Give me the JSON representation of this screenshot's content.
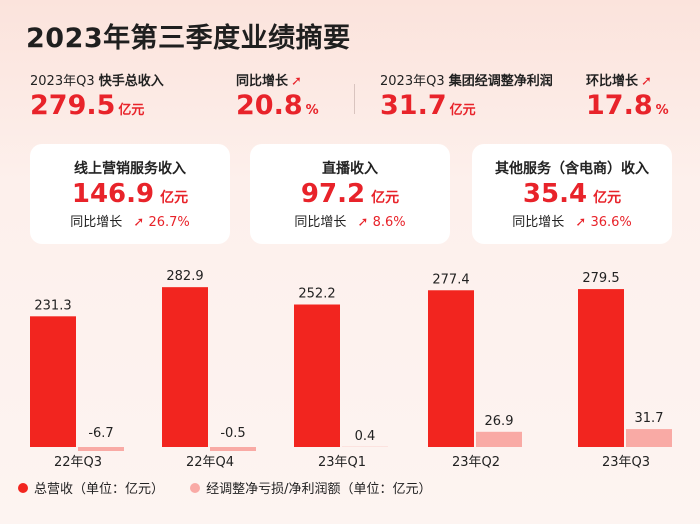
{
  "title": "2023年第三季度业绩摘要",
  "kpis": [
    {
      "label_a": "2023年Q3",
      "label_b": "快手总收入",
      "value": "279.5",
      "unit": "亿元"
    },
    {
      "label_a": "",
      "label_b": "同比增长",
      "value": "20.8",
      "unit": "%",
      "arrow": "➚"
    },
    {
      "label_a": "2023年Q3",
      "label_b": "集团经调整净利润",
      "value": "31.7",
      "unit": "亿元"
    },
    {
      "label_a": "",
      "label_b": "环比增长",
      "value": "17.8",
      "unit": "%",
      "arrow": "➚"
    }
  ],
  "cards": [
    {
      "title": "线上营销服务收入",
      "value": "146.9",
      "unit": "亿元",
      "growth_label": "同比增长",
      "growth": "26.7%",
      "arrow": "➚"
    },
    {
      "title": "直播收入",
      "value": "97.2",
      "unit": "亿元",
      "growth_label": "同比增长",
      "growth": "8.6%",
      "arrow": "➚"
    },
    {
      "title": "其他服务（含电商）收入",
      "value": "35.4",
      "unit": "亿元",
      "growth_label": "同比增长",
      "growth": "36.6%",
      "arrow": "➚"
    }
  ],
  "chart_data": {
    "type": "bar",
    "categories": [
      "22年Q3",
      "22年Q4",
      "23年Q1",
      "23年Q2",
      "23年Q3"
    ],
    "series": [
      {
        "name": "总营收（单位：亿元）",
        "values": [
          231.3,
          282.9,
          252.2,
          277.4,
          279.5
        ],
        "color": "#f2251f"
      },
      {
        "name": "经调整净亏损/净利润额（单位：亿元）",
        "values": [
          -6.7,
          -0.5,
          0.4,
          26.9,
          31.7
        ],
        "color": "#f9aaa5"
      }
    ],
    "data_labels": {
      "series0": [
        "231.3",
        "282.9",
        "252.2",
        "277.4",
        "279.5"
      ],
      "series1": [
        "-6.7",
        "-0.5",
        "0.4",
        "26.9",
        "31.7"
      ]
    },
    "legend_position": "bottom-left",
    "grid": false,
    "xlabel": "",
    "ylabel": ""
  }
}
